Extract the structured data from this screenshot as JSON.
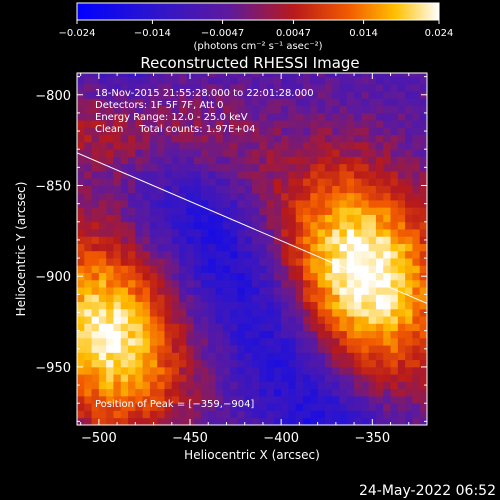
{
  "chart_data": {
    "type": "heatmap",
    "title": "Reconstructed RHESSI Image",
    "xlabel": "Heliocentric X (arcsec)",
    "ylabel": "Heliocentric Y (arcsec)",
    "xlim": [
      -512,
      -320
    ],
    "ylim": [
      -982,
      -788
    ],
    "x_ticks": [
      -500,
      -450,
      -400,
      -350
    ],
    "x_tick_labels": [
      "−500",
      "−450",
      "−400",
      "−350"
    ],
    "y_ticks": [
      -800,
      -850,
      -900,
      -950
    ],
    "y_tick_labels": [
      "−800",
      "−850",
      "−900",
      "−950"
    ],
    "colorbar": {
      "range": [
        -0.024,
        0.024
      ],
      "ticks": [
        -0.024,
        -0.014,
        -0.0047,
        0.0047,
        0.014,
        0.024
      ],
      "tick_labels": [
        "−0.024",
        "−0.014",
        "−0.0047",
        "0.0047",
        "0.014",
        "0.024"
      ],
      "unit_label": "(photons cm⁻² s⁻¹ asec⁻²)",
      "colormap": "blue-purple-red-yellow-white"
    },
    "info_lines": [
      "18-Nov-2015 21:55:28.000 to 22:01:28.000",
      "Detectors: 1F 5F 7F, Att 0",
      "Energy Range: 12.0 - 25.0 keV",
      "Clean     Total counts: 1.97E+04"
    ],
    "peak_label": "Position of Peak = [−359,−904]",
    "peak": [
      -359,
      -904
    ],
    "sources": [
      {
        "x": -355,
        "y": -898,
        "peak_value": 0.024
      },
      {
        "x": -495,
        "y": -932,
        "peak_value": 0.021
      },
      {
        "x": -478,
        "y": -818,
        "peak_value": 0.01
      }
    ],
    "limb_line": {
      "x": [
        -512,
        -320
      ],
      "y": [
        -832,
        -915
      ]
    },
    "grid": false
  },
  "footer": {
    "date_stamp": "24-May-2022 06:52"
  }
}
